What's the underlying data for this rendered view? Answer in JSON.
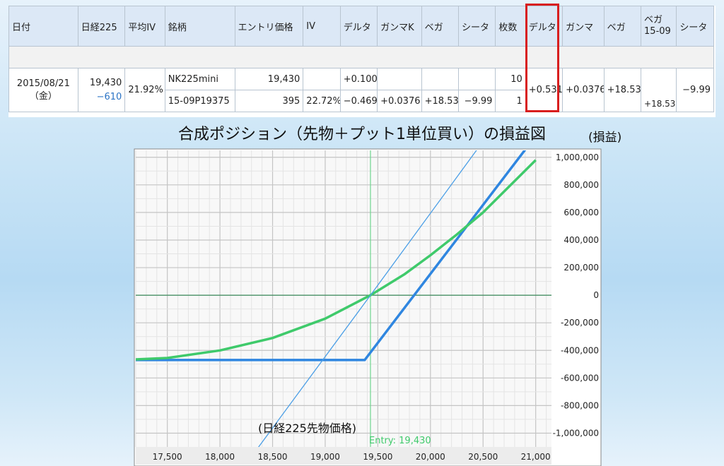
{
  "table": {
    "headers": [
      "日付",
      "日経225",
      "平均IV",
      "銘柄",
      "エントリ価格",
      "IV",
      "デルタ",
      "ガンマK",
      "ベガ",
      "シータ",
      "枚数",
      "デルタ",
      "ガンマ",
      "ベガ",
      "ベガ",
      "15-09",
      "シータ"
    ],
    "date": "2015/08/21",
    "weekday": "（金）",
    "nikkei": "19,430",
    "nikkei_change": "−610",
    "avg_iv": "21.92%",
    "rows": [
      {
        "name": "NK225mini",
        "price": "19,430",
        "iv": "",
        "delta": "+0.100",
        "gamma": "",
        "vega": "",
        "theta": "",
        "lots": "10"
      },
      {
        "name": "15-09P19375",
        "price": "395",
        "iv": "22.72%",
        "delta": "−0.469",
        "gamma": "+0.0376",
        "vega": "+18.53",
        "theta": "−9.99",
        "lots": "1"
      }
    ],
    "total": {
      "delta": "+0.531",
      "gamma": "+0.0376",
      "vega": "+18.53",
      "vega_1509": "+18.53",
      "theta": "−9.99"
    }
  },
  "chart_title": "合成ポジション（先物＋プット1単位買い）の損益図",
  "y_unit": "(損益)",
  "x_unit": "(日経225先物価格)",
  "entry_label": "Entry: 19,430",
  "colors": {
    "accent_red": "#d81e1e",
    "positive": "#c5156f",
    "negative": "#2a73c5",
    "green": "#3fca6b",
    "blue": "#2f86e0"
  },
  "chart_data": {
    "type": "line",
    "xlim": [
      17200,
      21150
    ],
    "ylim": [
      -1100000,
      1050000
    ],
    "x_ticks": [
      17500,
      18000,
      18500,
      19000,
      19500,
      20000,
      20500,
      21000
    ],
    "x_tick_labels": [
      "17,500",
      "18,000",
      "18,500",
      "19,000",
      "19,500",
      "20,000",
      "20,500",
      "21,000"
    ],
    "y_ticks": [
      1000000,
      800000,
      600000,
      400000,
      200000,
      0,
      -200000,
      -400000,
      -600000,
      -800000,
      -1000000
    ],
    "y_tick_labels": [
      "1,000,000",
      "800,000",
      "600,000",
      "400,000",
      "200,000",
      "0",
      "-200,000",
      "-400,000",
      "-600,000",
      "-800,000",
      "-1,000,000"
    ],
    "entry_x": 19430,
    "series": [
      {
        "name": "",
        "style": "thick-blue",
        "x": [
          17200,
          19375,
          21150
        ],
        "y": [
          -470000,
          -470000,
          1305000
        ]
      },
      {
        "name": "",
        "style": "green",
        "x": [
          17200,
          17500,
          18000,
          18500,
          19000,
          19430,
          19750,
          20000,
          20250,
          20500,
          20750,
          21000
        ],
        "y": [
          -465000,
          -455000,
          -400000,
          -310000,
          -170000,
          0,
          150000,
          290000,
          440000,
          600000,
          790000,
          980000
        ]
      },
      {
        "name": "",
        "style": "thin-blue",
        "x": [
          18300,
          19430,
          20600
        ],
        "y": [
          -1170000,
          0,
          1220000
        ]
      }
    ]
  }
}
